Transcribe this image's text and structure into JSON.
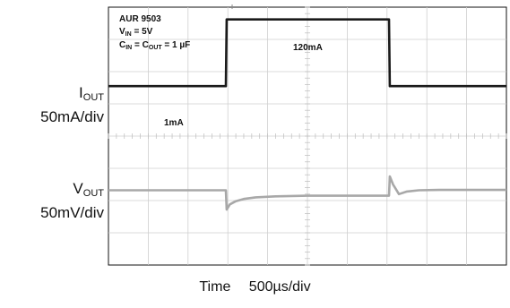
{
  "chart_data": {
    "type": "line",
    "x_div_label": "Time",
    "x_div_value": "500µs/div",
    "iout_label": {
      "name": "I",
      "sub": "OUT",
      "scale": "50mA/div"
    },
    "vout_label": {
      "name": "V",
      "sub": "OUT",
      "scale": "50mV/div"
    },
    "divisions": {
      "x": 10,
      "y": 8
    },
    "annotations": {
      "part": "AUR 9503",
      "vin": {
        "name": "V",
        "sub": "IN",
        "value": " = 5V"
      },
      "caps": {
        "a": "C",
        "a_sub": "IN",
        "b": "C",
        "b_sub": "OUT",
        "value": " = 1 µF",
        "eq": " = "
      },
      "low_current": "1mA",
      "high_current": "120mA"
    },
    "series": [
      {
        "name": "IOUT",
        "color": "#1a1a1a",
        "x": [
          0,
          2.95,
          2.97,
          7.05,
          7.07,
          10
        ],
        "y": [
          5.55,
          5.55,
          7.62,
          7.62,
          5.55,
          5.55
        ]
      },
      {
        "name": "VOUT",
        "color": "#a8a8a8",
        "x": [
          0,
          2.95,
          2.97,
          3.05,
          3.2,
          3.4,
          3.7,
          4.2,
          5.0,
          7.05,
          7.07,
          7.15,
          7.3,
          7.5,
          7.8,
          8.3,
          10
        ],
        "y": [
          2.32,
          2.32,
          1.72,
          1.88,
          1.98,
          2.05,
          2.1,
          2.13,
          2.15,
          2.15,
          2.75,
          2.5,
          2.2,
          2.28,
          2.32,
          2.33,
          2.33
        ]
      }
    ]
  }
}
